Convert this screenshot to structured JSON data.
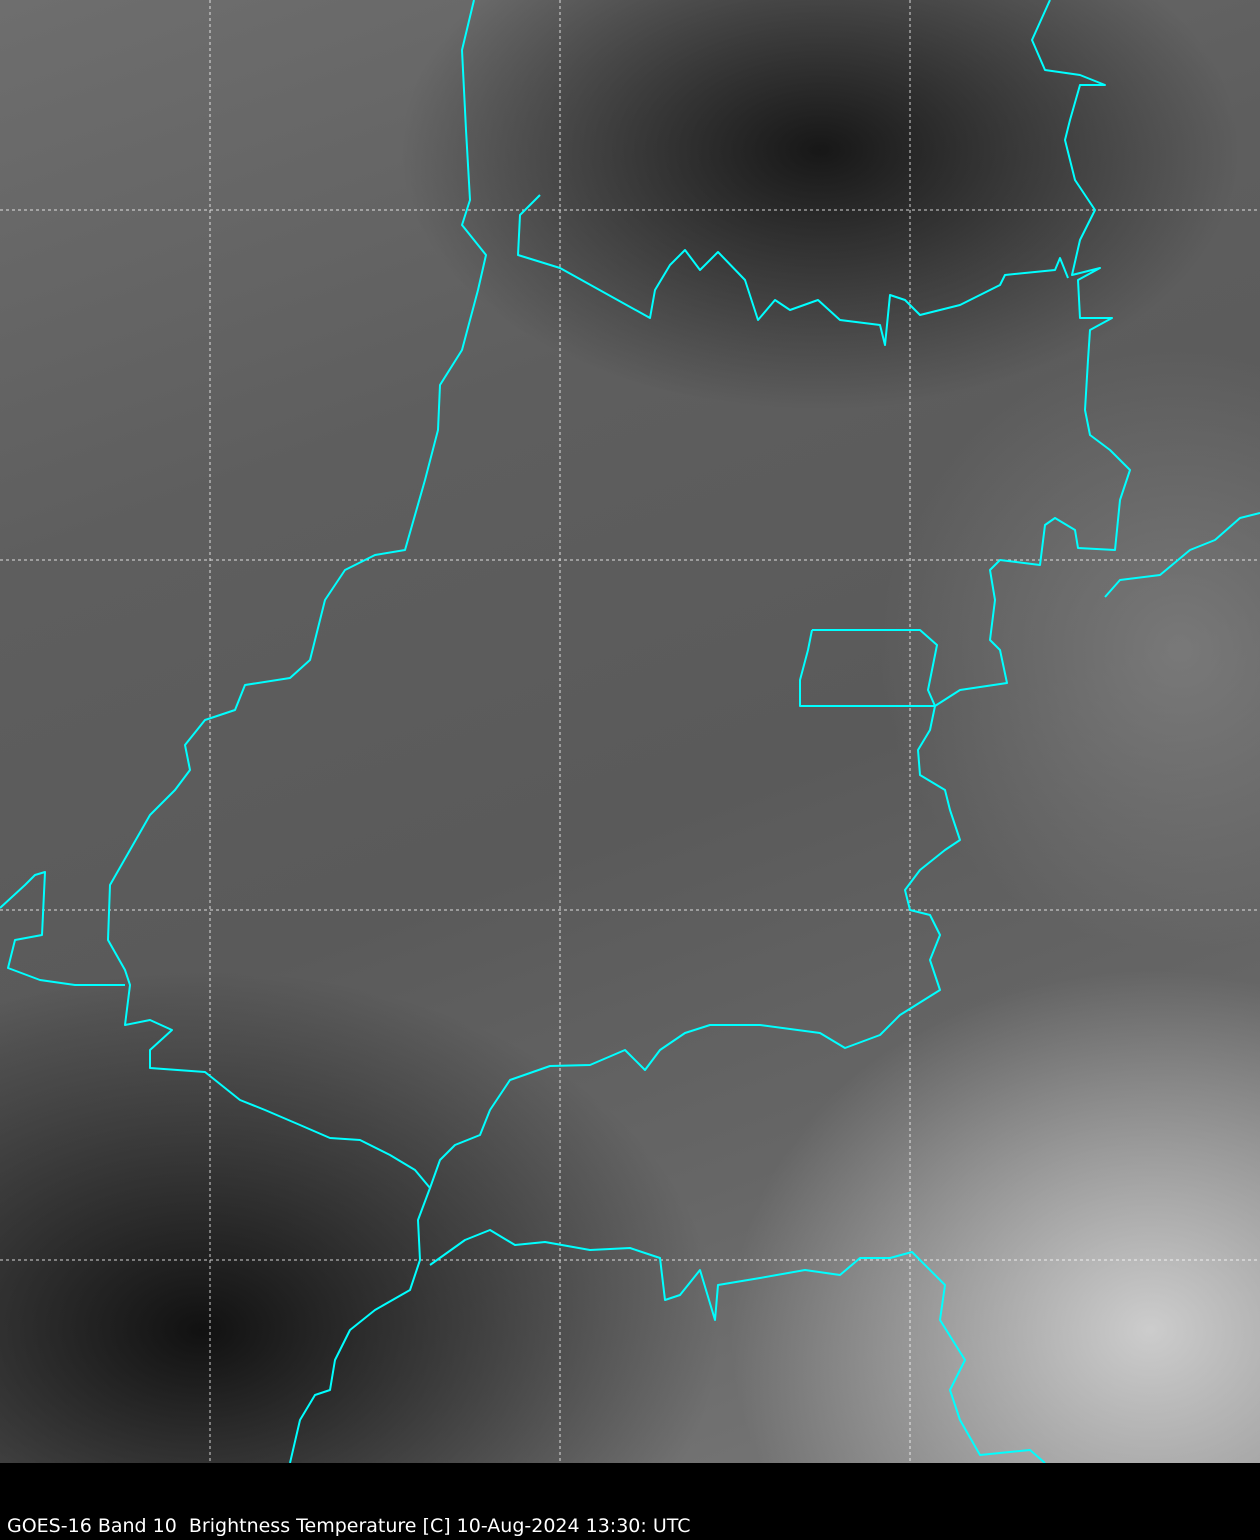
{
  "caption": "GOES-16 Band 10  Brightness Temperature [C] 10-Aug-2024 13:30: UTC",
  "colors": {
    "border": "#00ffff",
    "grid": "#ffffff",
    "background": "#000000"
  },
  "image": {
    "type": "satellite infrared grayscale",
    "gridlines": true
  }
}
